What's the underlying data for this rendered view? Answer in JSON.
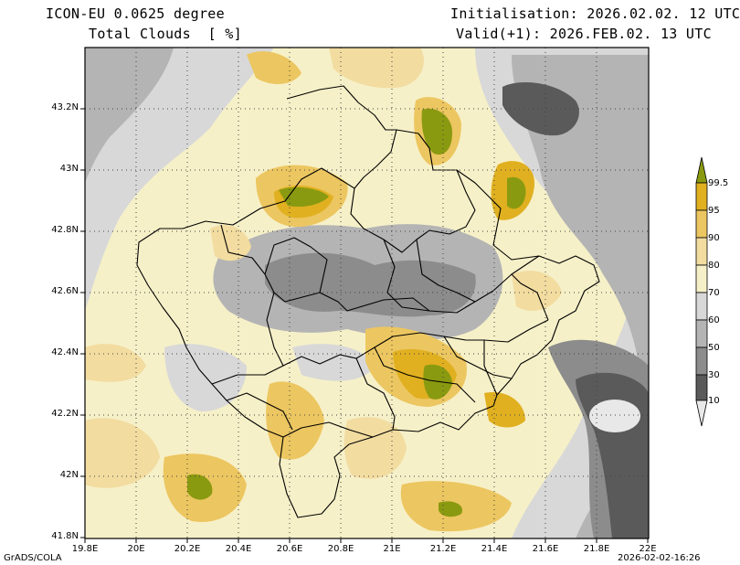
{
  "header": {
    "model": "ICON-EU 0.0625 degree",
    "variable": "Total Clouds  [ %]",
    "init": "Initialisation: 2026.02.02. 12 UTC",
    "valid": "Valid(+1): 2026.FEB.02. 13 UTC"
  },
  "footer": {
    "credit": "GrADS/COLA",
    "timestamp": "2026-02-02-16:26"
  },
  "axes": {
    "lat_labels": [
      "43.2N",
      "43N",
      "42.8N",
      "42.6N",
      "42.4N",
      "42.2N",
      "42N",
      "41.8N"
    ],
    "lon_labels": [
      "19.8E",
      "20E",
      "20.2E",
      "20.4E",
      "20.6E",
      "20.8E",
      "21E",
      "21.2E",
      "21.4E",
      "21.6E",
      "21.8E",
      "22E"
    ]
  },
  "legend": {
    "labels": [
      "99.5",
      "95",
      "90",
      "80",
      "70",
      "60",
      "50",
      "30",
      "10"
    ],
    "colors": [
      "#8a9a10",
      "#e0b020",
      "#ecc660",
      "#f2dca0",
      "#f6f0c8",
      "#d8d8d8",
      "#b4b4b4",
      "#8c8c8c",
      "#5a5a5a",
      "#e8e8e8"
    ]
  }
}
